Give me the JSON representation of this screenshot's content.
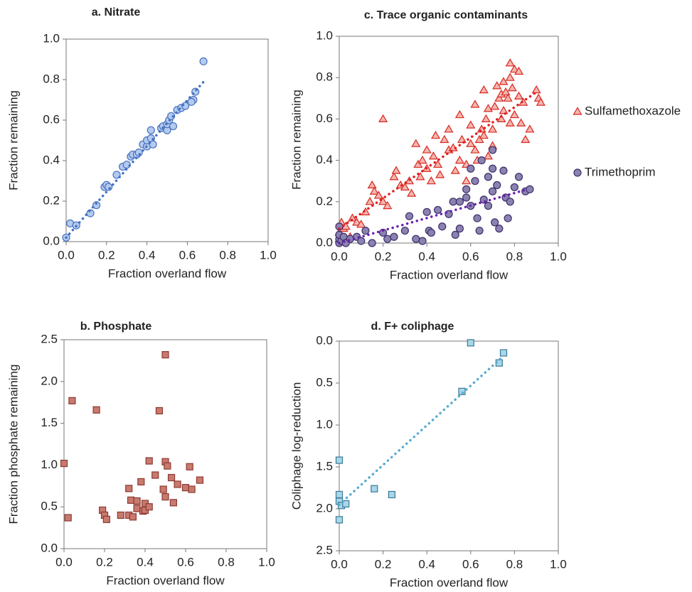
{
  "chart_data": [
    {
      "type": "scatter",
      "title": "a. Nitrate",
      "x_label": "Fraction overland flow",
      "y_label": "Fraction remaining",
      "xlim": [
        0,
        1
      ],
      "ylim": [
        0,
        1
      ],
      "xticks": [
        {
          "value": 0,
          "label": "0.0"
        },
        0.2,
        0.4,
        0.6,
        0.8,
        {
          "value": 1,
          "label": "1.0"
        }
      ],
      "yticks": [
        {
          "value": 0,
          "label": "0.0"
        },
        0.2,
        0.4,
        0.6,
        0.8,
        {
          "value": 1,
          "label": "1.0"
        }
      ],
      "series": [
        {
          "marker": "circle",
          "color": "#4a72c0",
          "fill": "#b4cbee",
          "x": [
            0,
            0.02,
            0.05,
            0.15,
            0.19,
            0.2,
            0.21,
            0.28,
            0.3,
            0.32,
            0.33,
            0.35,
            0.36,
            0.38,
            0.4,
            0.4,
            0.42,
            0.42,
            0.43,
            0.47,
            0.48,
            0.5,
            0.5,
            0.51,
            0.52,
            0.53,
            0.55,
            0.57,
            0.59,
            0.63,
            0.64,
            0.62,
            0.68,
            0.25,
            0.12
          ],
          "values": [
            0.02,
            0.09,
            0.08,
            0.18,
            0.27,
            0.28,
            0.27,
            0.37,
            0.38,
            0.42,
            0.43,
            0.43,
            0.44,
            0.48,
            0.47,
            0.5,
            0.51,
            0.55,
            0.48,
            0.56,
            0.57,
            0.55,
            0.58,
            0.6,
            0.62,
            0.57,
            0.65,
            0.66,
            0.67,
            0.7,
            0.74,
            0.69,
            0.89,
            0.33,
            0.14
          ],
          "trend": {
            "color": "#4472c4",
            "x": [
              0,
              0.69
            ],
            "values": [
              0.02,
              0.8
            ]
          }
        }
      ]
    },
    {
      "type": "scatter",
      "title": "b. Phosphate",
      "x_label": "Fraction overland flow",
      "y_label": "Fraction phosphate remaining",
      "xlim": [
        0,
        1
      ],
      "ylim": [
        0,
        2.5
      ],
      "xticks": [
        {
          "value": 0,
          "label": "0.0"
        },
        0.2,
        0.4,
        0.6,
        0.8,
        {
          "value": 1,
          "label": "1.0"
        }
      ],
      "yticks": [
        {
          "value": 0,
          "label": "0.0"
        },
        0.5,
        {
          "value": 1,
          "label": "1.0"
        },
        1.5,
        {
          "value": 2,
          "label": "2.0"
        },
        2.5
      ],
      "series": [
        {
          "marker": "square",
          "color": "#8b3a32",
          "fill": "#c97a6e",
          "x": [
            0,
            0.02,
            0.04,
            0.16,
            0.19,
            0.2,
            0.21,
            0.28,
            0.32,
            0.32,
            0.33,
            0.34,
            0.36,
            0.36,
            0.38,
            0.39,
            0.4,
            0.4,
            0.42,
            0.45,
            0.47,
            0.49,
            0.5,
            0.5,
            0.5,
            0.51,
            0.53,
            0.54,
            0.56,
            0.6,
            0.62,
            0.63,
            0.67,
            0.42
          ],
          "values": [
            1.02,
            0.37,
            1.77,
            1.66,
            0.46,
            0.4,
            0.35,
            0.4,
            0.72,
            0.4,
            0.58,
            0.38,
            0.48,
            0.57,
            0.8,
            0.45,
            0.54,
            0.46,
            1.05,
            0.88,
            1.65,
            0.71,
            2.32,
            0.62,
            1.04,
            0.99,
            0.85,
            0.55,
            0.77,
            0.73,
            0.98,
            0.71,
            0.82,
            0.5
          ]
        }
      ]
    },
    {
      "type": "scatter",
      "title": "c. Trace organic contaminants",
      "x_label": "Fraction overland flow",
      "y_label": "Fraction remaining",
      "xlim": [
        0,
        1
      ],
      "ylim": [
        0,
        1
      ],
      "xticks": [
        {
          "value": 0,
          "label": "0.0"
        },
        0.2,
        0.4,
        0.6,
        0.8,
        {
          "value": 1,
          "label": "1.0"
        }
      ],
      "yticks": [
        {
          "value": 0,
          "label": "0.0"
        },
        0.2,
        0.4,
        0.6,
        0.8,
        {
          "value": 1,
          "label": "1.0"
        }
      ],
      "series": [
        {
          "name": "Sulfamethoxazole",
          "marker": "triangle",
          "color": "#d62a20",
          "fill": "#f5b5b0",
          "x": [
            0,
            0,
            0.01,
            0.02,
            0.03,
            0.05,
            0.06,
            0.08,
            0.1,
            0.12,
            0.14,
            0.15,
            0.16,
            0.18,
            0.2,
            0.2,
            0.22,
            0.25,
            0.26,
            0.28,
            0.3,
            0.32,
            0.33,
            0.35,
            0.36,
            0.37,
            0.38,
            0.4,
            0.4,
            0.42,
            0.43,
            0.44,
            0.45,
            0.46,
            0.48,
            0.5,
            0.5,
            0.52,
            0.53,
            0.55,
            0.55,
            0.56,
            0.58,
            0.58,
            0.6,
            0.6,
            0.62,
            0.62,
            0.63,
            0.64,
            0.65,
            0.66,
            0.66,
            0.67,
            0.68,
            0.68,
            0.7,
            0.7,
            0.71,
            0.72,
            0.73,
            0.74,
            0.74,
            0.75,
            0.75,
            0.76,
            0.77,
            0.78,
            0.78,
            0.79,
            0.8,
            0.8,
            0.82,
            0.83,
            0.84,
            0.85,
            0.87,
            0.9,
            0.91,
            0.92,
            0.78,
            0.82
          ],
          "values": [
            0.02,
            0.05,
            0.1,
            0.07,
            0.08,
            0.03,
            0.12,
            0.1,
            0.09,
            0.15,
            0.2,
            0.28,
            0.25,
            0.23,
            0.6,
            0.2,
            0.18,
            0.32,
            0.35,
            0.28,
            0.27,
            0.3,
            0.24,
            0.48,
            0.38,
            0.32,
            0.4,
            0.45,
            0.36,
            0.3,
            0.42,
            0.52,
            0.38,
            0.33,
            0.5,
            0.45,
            0.55,
            0.46,
            0.35,
            0.62,
            0.4,
            0.5,
            0.38,
            0.3,
            0.48,
            0.57,
            0.45,
            0.67,
            0.4,
            0.5,
            0.55,
            0.52,
            0.74,
            0.6,
            0.42,
            0.65,
            0.55,
            0.47,
            0.66,
            0.76,
            0.7,
            0.72,
            0.6,
            0.78,
            0.64,
            0.73,
            0.7,
            0.8,
            0.58,
            0.75,
            0.84,
            0.62,
            0.71,
            0.58,
            0.68,
            0.5,
            0.55,
            0.74,
            0.7,
            0.68,
            0.87,
            0.83
          ],
          "trend": {
            "color": "#e02020",
            "x": [
              0,
              0.9
            ],
            "values": [
              0.07,
              0.73
            ]
          }
        },
        {
          "name": "Trimethoprim",
          "marker": "circle",
          "color": "#3d2f6b",
          "fill": "#8b82b0",
          "x": [
            0,
            0,
            0,
            0,
            0.01,
            0.02,
            0.03,
            0.05,
            0.08,
            0.1,
            0.12,
            0.15,
            0.2,
            0.22,
            0.25,
            0.3,
            0.32,
            0.35,
            0.38,
            0.4,
            0.41,
            0.42,
            0.45,
            0.47,
            0.5,
            0.52,
            0.53,
            0.55,
            0.55,
            0.58,
            0.6,
            0.6,
            0.62,
            0.63,
            0.64,
            0.66,
            0.68,
            0.68,
            0.7,
            0.7,
            0.71,
            0.72,
            0.73,
            0.75,
            0.76,
            0.77,
            0.78,
            0.8,
            0.82,
            0.85,
            0.87,
            0.7,
            0.65,
            0.58
          ],
          "values": [
            0,
            0.02,
            0.04,
            0.08,
            0.01,
            0.03,
            0,
            0.02,
            0.03,
            0.01,
            0.06,
            0,
            0.05,
            0.02,
            0.03,
            0.06,
            0.13,
            0.02,
            0.01,
            0.15,
            0.06,
            0.05,
            0.16,
            0.08,
            0.14,
            0.2,
            0.04,
            0.2,
            0.07,
            0.22,
            0.18,
            0.36,
            0.3,
            0.12,
            0.06,
            0.21,
            0.18,
            0.32,
            0.36,
            0.25,
            0.1,
            0.28,
            0.07,
            0.35,
            0.22,
            0.12,
            0.2,
            0.27,
            0.32,
            0.25,
            0.26,
            0.45,
            0.4,
            0.26
          ],
          "trend": {
            "color": "#6a1fb0",
            "x": [
              0,
              0.86
            ],
            "values": [
              0,
              0.26
            ]
          }
        }
      ]
    },
    {
      "type": "scatter",
      "title": "d. F+ coliphage",
      "x_label": "Fraction overland flow",
      "y_label": "Coliphage log-reduction",
      "xlim": [
        0,
        1
      ],
      "ylim": [
        2.5,
        0
      ],
      "xticks": [
        {
          "value": 0,
          "label": "0.0"
        },
        0.2,
        0.4,
        0.6,
        0.8,
        {
          "value": 1,
          "label": "1.0"
        }
      ],
      "yticks": [
        {
          "value": 0,
          "label": "0.0"
        },
        0.5,
        {
          "value": 1,
          "label": "1.0"
        },
        1.5,
        {
          "value": 2,
          "label": "2.0"
        },
        2.5
      ],
      "series": [
        {
          "marker": "square",
          "color": "#3b7a96",
          "fill": "#a9d6e8",
          "x": [
            0,
            0,
            0,
            0,
            0.01,
            0.03,
            0.16,
            0.24,
            0.56,
            0.6,
            0.73,
            0.75
          ],
          "values": [
            1.42,
            1.83,
            1.91,
            2.13,
            1.96,
            1.94,
            1.76,
            1.83,
            0.6,
            0.02,
            0.26,
            0.14
          ],
          "trend": {
            "color": "#5aaad0",
            "x": [
              0,
              0.74
            ],
            "values": [
              1.95,
              0.2
            ]
          }
        }
      ]
    }
  ]
}
